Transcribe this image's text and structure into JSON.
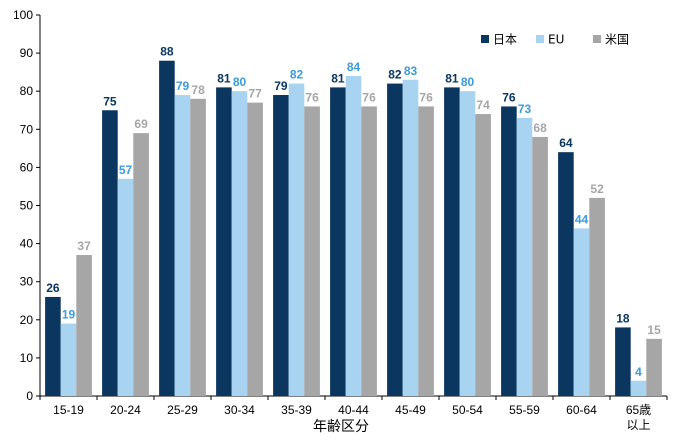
{
  "chart_data": {
    "type": "bar",
    "categories": [
      [
        "15-19"
      ],
      [
        "20-24"
      ],
      [
        "25-29"
      ],
      [
        "30-34"
      ],
      [
        "35-39"
      ],
      [
        "40-44"
      ],
      [
        "45-49"
      ],
      [
        "50-54"
      ],
      [
        "55-59"
      ],
      [
        "60-64"
      ],
      [
        "65歳",
        "以上"
      ]
    ],
    "series": [
      {
        "name": "日本",
        "color": "#0A3660",
        "label_color": "#0A3660",
        "values": [
          26,
          75,
          88,
          81,
          79,
          81,
          82,
          81,
          76,
          64,
          18
        ]
      },
      {
        "name": "EU",
        "color": "#A8D4F2",
        "label_color": "#3B9BDB",
        "values": [
          19,
          57,
          79,
          80,
          82,
          84,
          83,
          80,
          73,
          44,
          4
        ]
      },
      {
        "name": "米国",
        "color": "#A6A6A6",
        "label_color": "#A6A6A6",
        "values": [
          37,
          69,
          78,
          77,
          76,
          76,
          76,
          74,
          68,
          52,
          15
        ]
      }
    ],
    "xlabel": "年齢区分",
    "ylabel": "",
    "ylim": [
      0,
      100
    ],
    "yticks": [
      0,
      10,
      20,
      30,
      40,
      50,
      60,
      70,
      80,
      90,
      100
    ],
    "grid": false,
    "legend_position": "top-right"
  }
}
